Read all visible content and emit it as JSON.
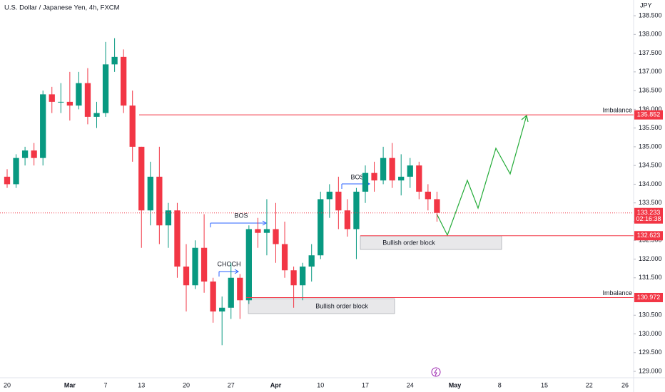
{
  "chart_data": {
    "type": "candlestick",
    "title": "U.S. Dollar / Japanese Yen, 4h, FXCM",
    "currency": "JPY",
    "categories": [
      "20",
      null,
      null,
      null,
      null,
      null,
      null,
      "Mar",
      null,
      null,
      null,
      "7",
      null,
      null,
      null,
      "13",
      null,
      null,
      null,
      null,
      "20",
      null,
      null,
      null,
      null,
      "27",
      null,
      null,
      null,
      null,
      "Apr",
      null,
      null,
      null,
      null,
      "10",
      null,
      null,
      null,
      null,
      "17",
      null,
      null,
      null,
      null,
      "24",
      null,
      null,
      null,
      null,
      "May",
      null,
      null,
      null,
      null,
      "8",
      null,
      null,
      null,
      null,
      "15",
      null,
      null,
      null,
      null,
      "22",
      null,
      null,
      null,
      "26"
    ],
    "open": [
      134.2,
      134.0,
      134.7,
      134.9,
      134.7,
      136.4,
      136.2,
      136.2,
      136.1,
      136.7,
      135.8,
      135.9,
      137.2,
      137.4,
      136.1,
      135.0,
      133.3,
      134.2,
      132.9,
      133.3,
      131.8,
      131.3,
      132.3,
      131.4,
      130.6,
      130.7,
      131.5,
      130.9,
      132.8,
      132.7,
      132.8,
      132.4,
      131.7,
      131.3,
      131.8,
      132.1,
      133.6,
      133.8,
      133.3,
      132.8,
      133.8,
      134.3,
      134.1,
      134.7,
      134.1,
      134.2,
      134.5,
      133.8,
      133.6,
      null,
      null,
      null,
      null,
      null,
      null,
      null,
      null,
      null,
      null,
      null,
      null,
      null,
      null,
      null,
      null,
      null,
      null,
      null,
      null,
      null
    ],
    "high": [
      134.4,
      134.8,
      135.0,
      135.1,
      136.5,
      136.6,
      136.7,
      137.0,
      137.0,
      137.1,
      136.2,
      137.8,
      137.9,
      137.6,
      136.5,
      135.0,
      134.6,
      135.0,
      133.5,
      133.5,
      132.4,
      132.5,
      133.2,
      131.5,
      131.0,
      131.9,
      131.6,
      132.9,
      133.1,
      133.6,
      133.5,
      133.0,
      131.8,
      131.9,
      132.4,
      133.8,
      134.0,
      134.2,
      133.6,
      133.9,
      134.5,
      134.6,
      135.0,
      135.1,
      134.8,
      134.7,
      134.6,
      134.0,
      133.8,
      null,
      null,
      null,
      null,
      null,
      null,
      null,
      null,
      null,
      null,
      null,
      null,
      null,
      null,
      null,
      null,
      null,
      null,
      null,
      null,
      null
    ],
    "low": [
      133.9,
      133.9,
      134.5,
      134.5,
      134.5,
      135.9,
      135.9,
      135.7,
      136.0,
      135.6,
      135.5,
      135.8,
      137.0,
      135.9,
      134.6,
      132.3,
      132.9,
      132.4,
      132.3,
      131.5,
      130.6,
      131.2,
      131.1,
      130.3,
      129.7,
      130.4,
      130.4,
      130.8,
      132.3,
      132.1,
      131.9,
      131.5,
      130.7,
      130.9,
      131.4,
      132.0,
      133.1,
      132.8,
      132.6,
      132.0,
      133.5,
      133.8,
      134.0,
      133.9,
      133.7,
      133.9,
      133.6,
      133.3,
      133.0,
      null,
      null,
      null,
      null,
      null,
      null,
      null,
      null,
      null,
      null,
      null,
      null,
      null,
      null,
      null,
      null,
      null,
      null,
      null,
      null,
      null
    ],
    "close": [
      134.0,
      134.7,
      134.9,
      134.7,
      136.4,
      136.2,
      136.2,
      136.1,
      136.7,
      135.8,
      135.9,
      137.2,
      137.4,
      136.1,
      135.0,
      133.3,
      134.2,
      132.9,
      133.3,
      131.8,
      131.3,
      132.3,
      131.4,
      130.6,
      130.7,
      131.5,
      130.9,
      132.8,
      132.7,
      132.8,
      132.4,
      131.7,
      131.3,
      131.8,
      132.1,
      133.6,
      133.8,
      133.3,
      132.8,
      133.8,
      134.3,
      134.1,
      134.7,
      134.1,
      134.2,
      134.5,
      133.8,
      133.6,
      133.233,
      null,
      null,
      null,
      null,
      null,
      null,
      null,
      null,
      null,
      null,
      null,
      null,
      null,
      null,
      null,
      null,
      null,
      null,
      null,
      null,
      null
    ],
    "up_color": "#089981",
    "down_color": "#f23645",
    "ylim": [
      128.83,
      138.92
    ],
    "yticks": [
      {
        "value": 129.0,
        "label": "129.000"
      },
      {
        "value": 129.5,
        "label": "129.500"
      },
      {
        "value": 130.0,
        "label": "130.000"
      },
      {
        "value": 130.5,
        "label": "130.500"
      },
      {
        "value": 131.0,
        "label": "131.000"
      },
      {
        "value": 131.5,
        "label": "131.500"
      },
      {
        "value": 132.0,
        "label": "132.000"
      },
      {
        "value": 132.5,
        "label": "132.500"
      },
      {
        "value": 133.0,
        "label": "133.000"
      },
      {
        "value": 133.5,
        "label": "133.500"
      },
      {
        "value": 134.0,
        "label": "134.000"
      },
      {
        "value": 134.5,
        "label": "134.500"
      },
      {
        "value": 135.0,
        "label": "135.000"
      },
      {
        "value": 135.5,
        "label": "135.500"
      },
      {
        "value": 136.0,
        "label": "136.000"
      },
      {
        "value": 136.5,
        "label": "136.500"
      },
      {
        "value": 137.0,
        "label": "137.000"
      },
      {
        "value": 137.5,
        "label": "137.500"
      },
      {
        "value": 138.0,
        "label": "138.000"
      },
      {
        "value": 138.5,
        "label": "138.500"
      }
    ],
    "grid": false,
    "levels": [
      {
        "name": "Imbalance",
        "value": 135.852,
        "label": "135.852"
      },
      {
        "value": 132.623,
        "label": "132.623"
      },
      {
        "name": "Imbalance",
        "value": 130.972,
        "label": "130.972"
      }
    ],
    "current_price": {
      "value": 133.233,
      "label": "133.233",
      "countdown": "02:16:38"
    },
    "annotations": [
      "BOS",
      "CHOCH",
      "BOS",
      "Bullish order block",
      "Bullish order block"
    ]
  }
}
